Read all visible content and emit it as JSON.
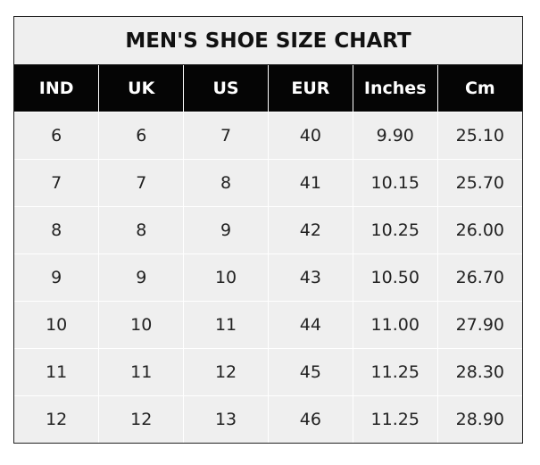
{
  "title": "MEN'S SHOE SIZE CHART",
  "table": {
    "headers": [
      "IND",
      "UK",
      "US",
      "EUR",
      "Inches",
      "Cm"
    ],
    "rows": [
      [
        "6",
        "6",
        "7",
        "40",
        "9.90",
        "25.10"
      ],
      [
        "7",
        "7",
        "8",
        "41",
        "10.15",
        "25.70"
      ],
      [
        "8",
        "8",
        "9",
        "42",
        "10.25",
        "26.00"
      ],
      [
        "9",
        "9",
        "10",
        "43",
        "10.50",
        "26.70"
      ],
      [
        "10",
        "10",
        "11",
        "44",
        "11.00",
        "27.90"
      ],
      [
        "11",
        "11",
        "12",
        "45",
        "11.25",
        "28.30"
      ],
      [
        "12",
        "12",
        "13",
        "46",
        "11.25",
        "28.90"
      ]
    ]
  },
  "colors": {
    "header_bg": "#050505",
    "cell_bg": "#efefef",
    "grid": "#ffffff"
  }
}
